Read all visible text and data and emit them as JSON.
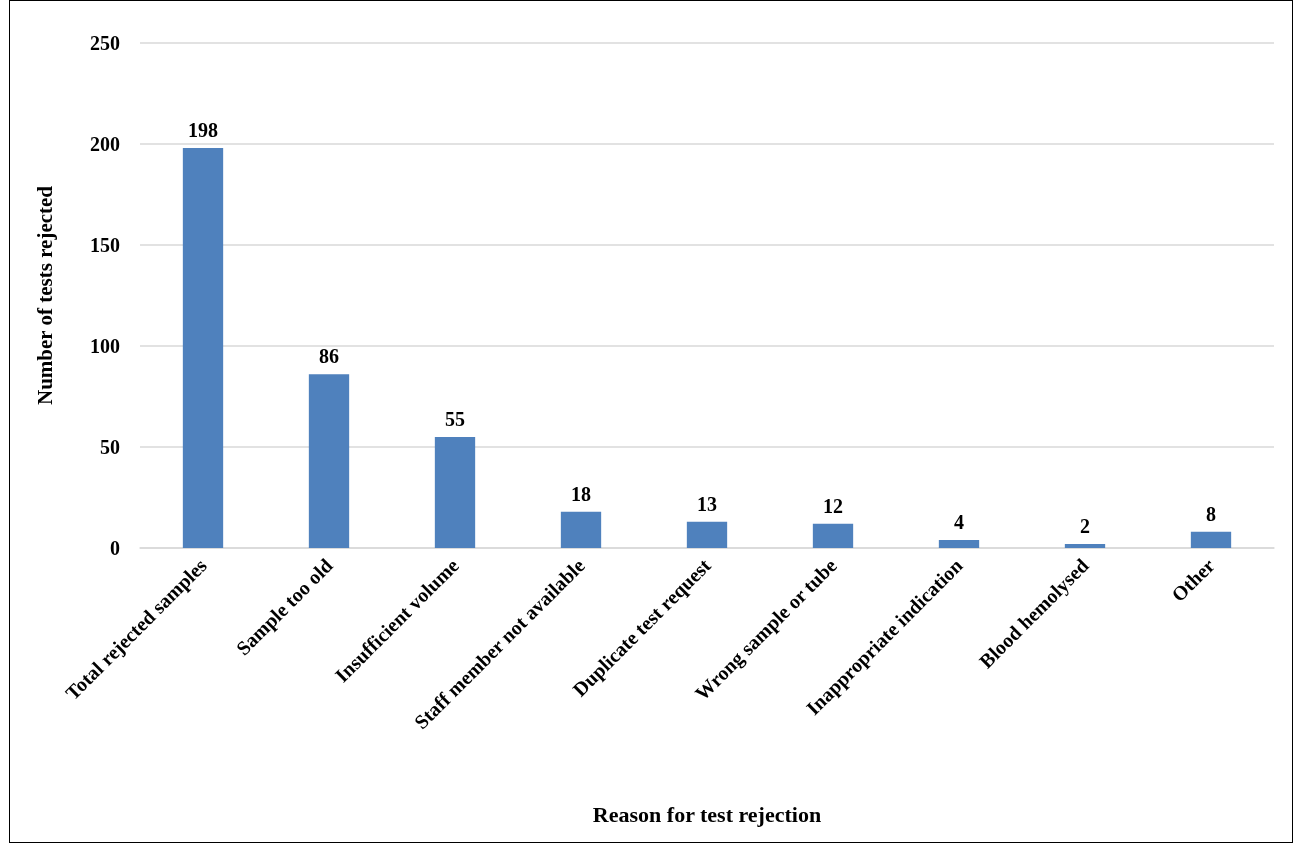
{
  "chart_data": {
    "type": "bar",
    "xlabel": "Reason for test rejection",
    "ylabel": "Number of tests rejected",
    "categories": [
      "Total rejected samples",
      "Sample too old",
      "Insufficient volume",
      "Staff member not available",
      "Duplicate test request",
      "Wrong sample or tube",
      "Inappropriate indication",
      "Blood hemolysed",
      "Other"
    ],
    "values": [
      198,
      86,
      55,
      18,
      13,
      12,
      4,
      2,
      8
    ],
    "color": "#4f81bd",
    "ylim": [
      0,
      250
    ],
    "yticks": [
      0,
      50,
      100,
      150,
      200,
      250
    ],
    "grid": "y",
    "data_labels": true
  }
}
